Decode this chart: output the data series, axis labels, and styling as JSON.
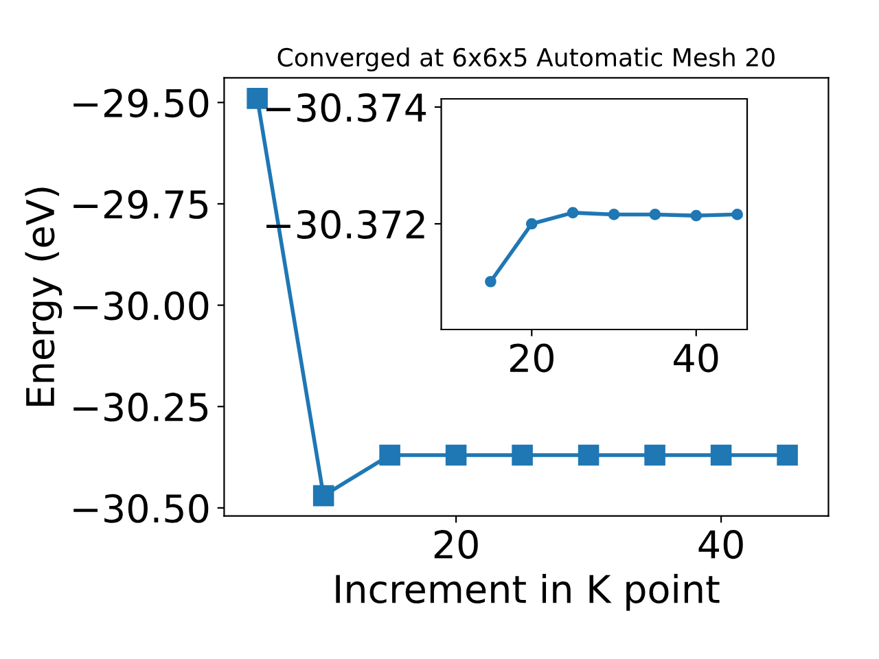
{
  "chart_data": [
    {
      "type": "line",
      "title": "Converged at 6x6x5 Automatic Mesh 20",
      "xlabel": "Increment in K point",
      "ylabel": "Energy (eV)",
      "x": [
        5,
        10,
        15,
        20,
        25,
        30,
        35,
        40,
        45
      ],
      "series": [
        {
          "color": "#1f77b4",
          "values": [
            -29.49,
            -30.47,
            -30.37,
            -30.37,
            -30.37,
            -30.37,
            -30.37,
            -30.37,
            -30.37
          ]
        }
      ],
      "xlim": [
        2.5,
        48.1
      ],
      "xticks": [
        20,
        40
      ],
      "ylim": [
        -30.52,
        -29.439
      ],
      "yticks": [
        {
          "value": -29.5,
          "label": "−29.50"
        },
        {
          "value": -29.75,
          "label": "−29.75"
        },
        {
          "value": -30.0,
          "label": "−30.00"
        },
        {
          "value": -30.25,
          "label": "−30.25"
        },
        {
          "value": -30.5,
          "label": "−30.50"
        }
      ],
      "marker": "square",
      "grid": false
    },
    {
      "type": "line",
      "x": [
        15,
        20,
        25,
        30,
        35,
        40,
        45
      ],
      "series": [
        {
          "color": "#1f77b4",
          "values": [
            -30.37101,
            -30.372,
            -30.37219,
            -30.37216,
            -30.37216,
            -30.37214,
            -30.37216
          ]
        }
      ],
      "xlim": [
        9,
        46.2
      ],
      "xticks": [
        20,
        40
      ],
      "ylim": [
        -30.37019,
        -30.37414
      ],
      "yticks": [
        {
          "value": -30.374,
          "label": "−30.374"
        },
        {
          "value": -30.372,
          "label": "−30.372"
        }
      ],
      "marker": "circle",
      "grid": false
    }
  ]
}
